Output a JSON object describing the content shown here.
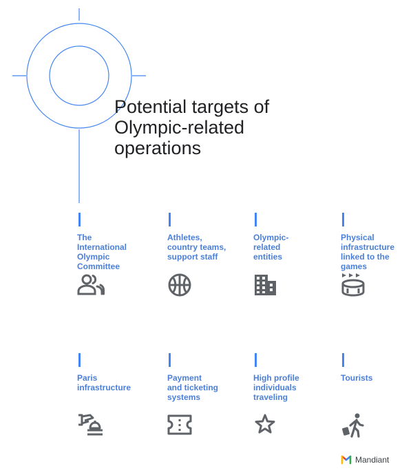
{
  "title": {
    "lines": [
      "Potential targets of",
      "Olympic-related",
      "operations"
    ]
  },
  "targets": [
    {
      "lines": [
        "The",
        "International",
        "Olympic",
        "Committee"
      ],
      "icon": "group-icon"
    },
    {
      "lines": [
        "Athletes,",
        "country teams,",
        "support staff"
      ],
      "icon": "basketball-icon"
    },
    {
      "lines": [
        "Olympic-",
        "related",
        "entities"
      ],
      "icon": "building-icon"
    },
    {
      "lines": [
        "Physical",
        "infrastructure",
        "linked to the",
        "games"
      ],
      "icon": "stadium-icon"
    },
    {
      "lines": [
        "Paris",
        "infrastructure"
      ],
      "icon": "hand-bell-icon"
    },
    {
      "lines": [
        "Payment",
        "and ticketing",
        "systems"
      ],
      "icon": "ticket-icon"
    },
    {
      "lines": [
        "High profile",
        "individuals",
        "traveling"
      ],
      "icon": "star-icon"
    },
    {
      "lines": [
        "Tourists"
      ],
      "icon": "traveler-icon"
    }
  ],
  "brand": {
    "name": "Mandiant",
    "icon": "mandiant-logo-icon"
  },
  "colors": {
    "accent": "#4285f4",
    "label": "#4a7fd8",
    "icon": "#5f6368",
    "text": "#202124"
  }
}
